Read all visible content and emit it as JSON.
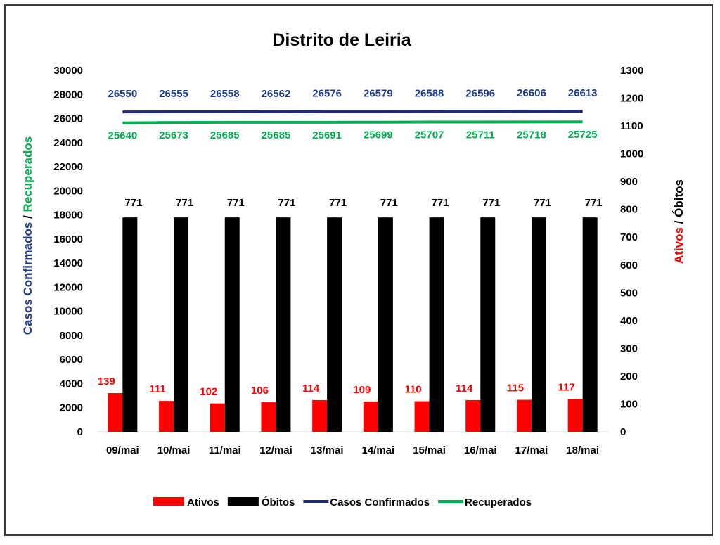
{
  "chart_data": {
    "type": "bar",
    "title": "Distrito de Leiria",
    "categories": [
      "09/mai",
      "10/mai",
      "11/mai",
      "12/mai",
      "13/mai",
      "14/mai",
      "15/mai",
      "16/mai",
      "17/mai",
      "18/mai"
    ],
    "left_axis": {
      "label_parts": [
        {
          "text": "Casos Confirmados",
          "color": "#1f3b8a"
        },
        {
          "text": " / ",
          "color": "#000000"
        },
        {
          "text": "Recuperados",
          "color": "#00b050"
        }
      ],
      "ylim": [
        0,
        30000
      ],
      "ticks": [
        0,
        2000,
        4000,
        6000,
        8000,
        10000,
        12000,
        14000,
        16000,
        18000,
        20000,
        22000,
        24000,
        26000,
        28000,
        30000
      ]
    },
    "right_axis": {
      "label_parts": [
        {
          "text": "Ativos",
          "color": "#ff0000"
        },
        {
          "text": " / ",
          "color": "#000000"
        },
        {
          "text": "Óbitos",
          "color": "#000000"
        }
      ],
      "ylim": [
        0,
        1300
      ],
      "ticks": [
        0,
        100,
        200,
        300,
        400,
        500,
        600,
        700,
        800,
        900,
        1000,
        1100,
        1200,
        1300
      ]
    },
    "series": [
      {
        "name": "Ativos",
        "kind": "bar",
        "axis": "right",
        "color": "#ff0000",
        "label_color": "#ff0000",
        "values": [
          139,
          111,
          102,
          106,
          114,
          109,
          110,
          114,
          115,
          117
        ]
      },
      {
        "name": "Óbitos",
        "kind": "bar",
        "axis": "right",
        "color": "#000000",
        "label_color": "#000000",
        "values": [
          771,
          771,
          771,
          771,
          771,
          771,
          771,
          771,
          771,
          771
        ]
      },
      {
        "name": "Casos Confirmados",
        "kind": "line",
        "axis": "left",
        "color": "#1f2a7a",
        "label_color": "#1f3b8a",
        "values": [
          26550,
          26555,
          26558,
          26562,
          26576,
          26579,
          26588,
          26596,
          26606,
          26613
        ]
      },
      {
        "name": "Recuperados",
        "kind": "line",
        "axis": "left",
        "color": "#00b050",
        "label_color": "#00b050",
        "values": [
          25640,
          25673,
          25685,
          25685,
          25691,
          25699,
          25707,
          25711,
          25718,
          25725
        ]
      }
    ],
    "legend_position": "bottom",
    "grid": false
  }
}
